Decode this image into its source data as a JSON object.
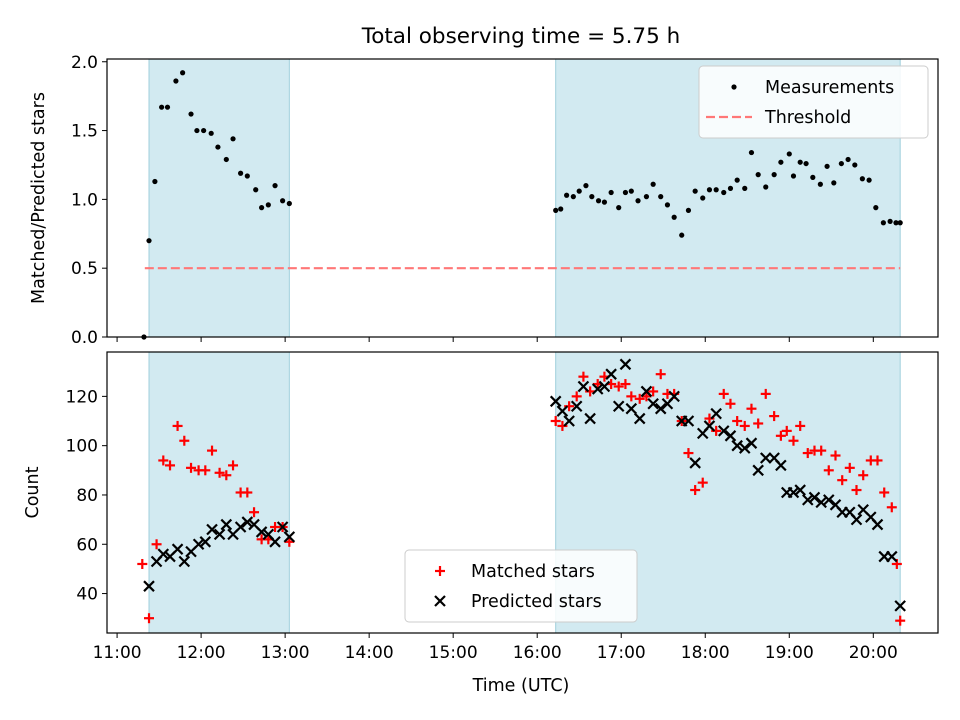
{
  "chart_data": {
    "title": "Total observing time = 5.75 h",
    "xlabel": "Time (UTC)",
    "x_tick_labels": [
      "11:00",
      "12:00",
      "13:00",
      "14:00",
      "15:00",
      "16:00",
      "17:00",
      "18:00",
      "19:00",
      "20:00"
    ],
    "x_ticks": [
      11,
      12,
      13,
      14,
      15,
      16,
      17,
      18,
      19,
      20
    ],
    "xlim": [
      10.88,
      20.77
    ],
    "shaded_intervals": [
      [
        11.38,
        13.05
      ],
      [
        16.22,
        20.32
      ]
    ],
    "shade_color": "#add8e6",
    "panels": [
      {
        "type": "scatter",
        "ylabel": "Matched/Predicted stars",
        "ylim": [
          0,
          2.02
        ],
        "y_ticks": [
          0,
          0.5,
          1,
          1.5,
          2
        ],
        "y_tick_labels": [
          "0.0",
          "0.5",
          "1.0",
          "1.5",
          "2.0"
        ],
        "legend_position": "upper-right",
        "threshold": {
          "name": "Threshold",
          "value": 0.5,
          "x_range": [
            11.33,
            20.32
          ],
          "color": "#ff7777",
          "style": "dashed"
        },
        "series": [
          {
            "name": "Measurements",
            "marker": "dot",
            "color": "#000000",
            "x": [
              11.32,
              11.38,
              11.45,
              11.53,
              11.6,
              11.7,
              11.78,
              11.88,
              11.95,
              12.03,
              12.12,
              12.2,
              12.3,
              12.38,
              12.47,
              12.55,
              12.65,
              12.72,
              12.8,
              12.88,
              12.97,
              13.05,
              16.22,
              16.28,
              16.35,
              16.43,
              16.5,
              16.58,
              16.65,
              16.73,
              16.8,
              16.88,
              16.97,
              17.05,
              17.12,
              17.2,
              17.3,
              17.38,
              17.47,
              17.55,
              17.63,
              17.72,
              17.8,
              17.88,
              17.97,
              18.05,
              18.13,
              18.22,
              18.3,
              18.38,
              18.47,
              18.55,
              18.63,
              18.72,
              18.82,
              18.9,
              19.0,
              19.05,
              19.13,
              19.2,
              19.28,
              19.37,
              19.45,
              19.53,
              19.62,
              19.7,
              19.78,
              19.87,
              19.95,
              20.03,
              20.12,
              20.2,
              20.27,
              20.32
            ],
            "y": [
              0.0,
              0.7,
              1.13,
              1.67,
              1.67,
              1.86,
              1.92,
              1.62,
              1.5,
              1.5,
              1.48,
              1.38,
              1.29,
              1.44,
              1.19,
              1.17,
              1.07,
              0.94,
              0.96,
              1.1,
              0.99,
              0.97,
              0.92,
              0.93,
              1.03,
              1.02,
              1.06,
              1.1,
              1.02,
              0.99,
              0.98,
              1.05,
              0.94,
              1.05,
              1.06,
              0.99,
              1.02,
              1.11,
              1.02,
              0.96,
              0.87,
              0.74,
              0.92,
              1.06,
              1.01,
              1.07,
              1.07,
              1.05,
              1.08,
              1.14,
              1.08,
              1.34,
              1.18,
              1.09,
              1.18,
              1.27,
              1.33,
              1.17,
              1.27,
              1.26,
              1.16,
              1.11,
              1.24,
              1.12,
              1.26,
              1.29,
              1.25,
              1.15,
              1.14,
              0.94,
              0.83,
              0.84,
              0.83,
              0.83
            ]
          }
        ]
      },
      {
        "type": "scatter",
        "ylabel": "Count",
        "ylim": [
          24,
          138
        ],
        "y_ticks": [
          40,
          60,
          80,
          100,
          120
        ],
        "y_tick_labels": [
          "40",
          "60",
          "80",
          "100",
          "120"
        ],
        "legend_position": "lower-center",
        "series": [
          {
            "name": "Matched stars",
            "marker": "plus",
            "color": "#ff0000",
            "x": [
              11.3,
              11.38,
              11.47,
              11.55,
              11.63,
              11.72,
              11.8,
              11.88,
              11.97,
              12.05,
              12.13,
              12.22,
              12.3,
              12.38,
              12.47,
              12.55,
              12.63,
              12.72,
              12.8,
              12.88,
              12.97,
              13.05,
              16.22,
              16.3,
              16.38,
              16.47,
              16.55,
              16.63,
              16.72,
              16.8,
              16.88,
              16.97,
              17.05,
              17.12,
              17.22,
              17.3,
              17.38,
              17.47,
              17.55,
              17.63,
              17.72,
              17.8,
              17.88,
              17.97,
              18.05,
              18.13,
              18.22,
              18.3,
              18.38,
              18.47,
              18.55,
              18.63,
              18.72,
              18.82,
              18.9,
              18.97,
              19.05,
              19.13,
              19.22,
              19.3,
              19.38,
              19.47,
              19.55,
              19.63,
              19.72,
              19.8,
              19.88,
              19.97,
              20.05,
              20.13,
              20.22,
              20.28,
              20.32
            ],
            "y": [
              52,
              30,
              60,
              94,
              92,
              108,
              102,
              91,
              90,
              90,
              98,
              89,
              88,
              92,
              81,
              81,
              73,
              62,
              62,
              67,
              67,
              61,
              110,
              108,
              116,
              120,
              128,
              122,
              125,
              128,
              125,
              124,
              125,
              120,
              119,
              120,
              122,
              129,
              121,
              121,
              110,
              97,
              82,
              85,
              111,
              106,
              121,
              117,
              110,
              108,
              115,
              109,
              121,
              112,
              104,
              106,
              102,
              108,
              97,
              98,
              98,
              90,
              96,
              86,
              91,
              82,
              88,
              94,
              94,
              81,
              75,
              52,
              29
            ]
          },
          {
            "name": "Predicted stars",
            "marker": "x",
            "color": "#000000",
            "x": [
              11.38,
              11.47,
              11.55,
              11.63,
              11.72,
              11.8,
              11.88,
              11.97,
              12.05,
              12.13,
              12.22,
              12.3,
              12.38,
              12.47,
              12.55,
              12.63,
              12.72,
              12.8,
              12.88,
              12.97,
              13.05,
              16.22,
              16.3,
              16.38,
              16.47,
              16.55,
              16.63,
              16.72,
              16.8,
              16.88,
              16.97,
              17.05,
              17.12,
              17.22,
              17.3,
              17.38,
              17.47,
              17.55,
              17.63,
              17.72,
              17.8,
              17.88,
              17.97,
              18.05,
              18.13,
              18.22,
              18.3,
              18.38,
              18.47,
              18.55,
              18.63,
              18.72,
              18.82,
              18.9,
              18.97,
              19.05,
              19.13,
              19.22,
              19.3,
              19.38,
              19.47,
              19.55,
              19.63,
              19.72,
              19.8,
              19.88,
              19.97,
              20.05,
              20.13,
              20.22,
              20.32
            ],
            "y": [
              43,
              53,
              56,
              55,
              58,
              53,
              57,
              60,
              61,
              66,
              64,
              68,
              64,
              67,
              69,
              68,
              65,
              64,
              61,
              67,
              63,
              118,
              114,
              110,
              116,
              124,
              111,
              123,
              124,
              129,
              116,
              133,
              115,
              111,
              122,
              117,
              115,
              117,
              120,
              110,
              110,
              93,
              105,
              108,
              113,
              106,
              104,
              100,
              99,
              101,
              90,
              95,
              95,
              92,
              81,
              81,
              82,
              78,
              79,
              77,
              78,
              76,
              73,
              73,
              70,
              74,
              71,
              68,
              55,
              55,
              35
            ]
          }
        ]
      }
    ]
  }
}
